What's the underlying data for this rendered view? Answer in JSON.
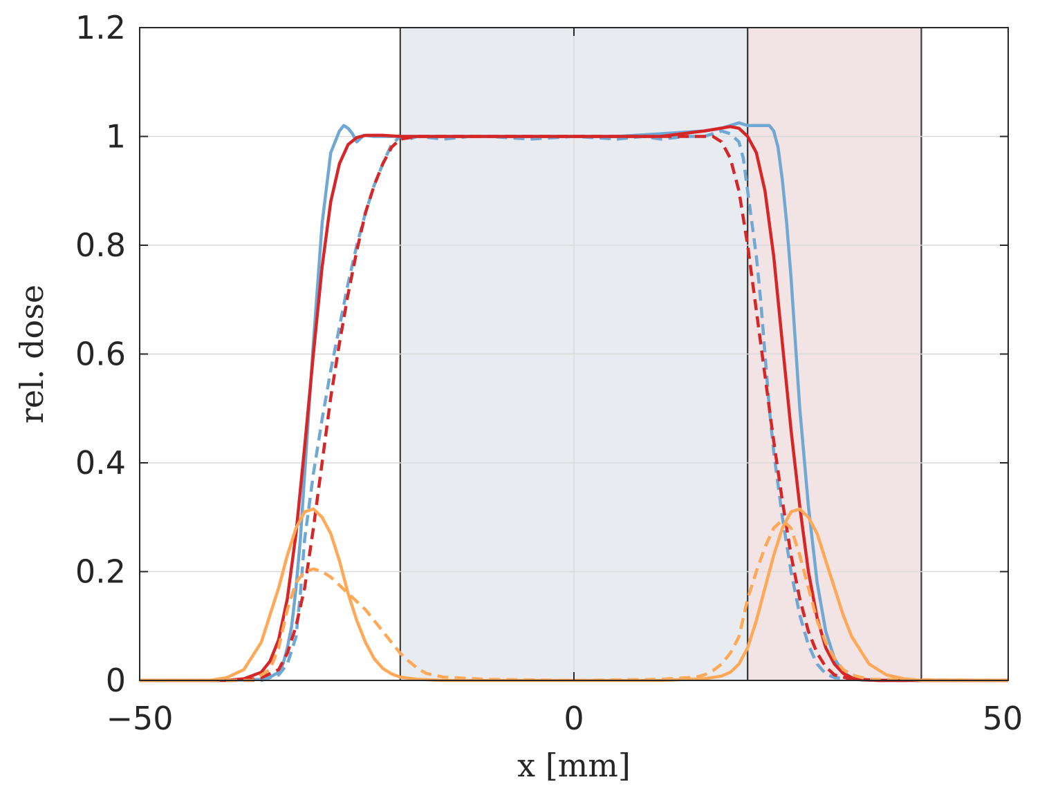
{
  "chart_data": {
    "type": "line",
    "xlabel": "x [mm]",
    "ylabel": "rel. dose",
    "xlim": [
      -50,
      50
    ],
    "ylim": [
      0,
      1.2
    ],
    "xticks": [
      -50,
      0,
      50
    ],
    "xtick_labels": [
      "−50",
      "0",
      "50"
    ],
    "yticks": [
      0,
      0.2,
      0.4,
      0.6,
      0.8,
      1,
      1.2
    ],
    "ytick_labels": [
      "0",
      "0.2",
      "0.4",
      "0.6",
      "0.8",
      "1",
      "1.2"
    ],
    "grid": true,
    "shaded_regions": [
      {
        "x": [
          -20,
          20
        ],
        "color": "#e8ecf0"
      },
      {
        "x": [
          20,
          40
        ],
        "color": "#f2e4e4"
      }
    ],
    "series": [
      {
        "color": "#6fa8d3",
        "style": "solid",
        "x": [
          -50,
          -40,
          -36,
          -35,
          -34,
          -33.5,
          -33,
          -32.5,
          -32,
          -31.5,
          -31,
          -30,
          -29,
          -28,
          -27,
          -26.5,
          -26,
          -25.5,
          -25,
          -24.2,
          -23,
          -20,
          -15,
          -10,
          -5,
          0,
          5,
          10,
          15,
          17,
          18,
          19,
          20,
          21.5,
          22.5,
          23,
          23.5,
          24,
          24.5,
          25,
          25.5,
          26,
          27,
          28,
          29,
          30,
          31,
          32,
          33,
          35,
          40,
          50
        ],
        "y": [
          0,
          0,
          0.002,
          0.006,
          0.015,
          0.03,
          0.06,
          0.1,
          0.17,
          0.26,
          0.38,
          0.62,
          0.84,
          0.97,
          1.01,
          1.02,
          1.015,
          1.005,
          0.99,
          1.002,
          1.0,
          1.0,
          1.0,
          1.0,
          1.0,
          1.0,
          1.0,
          1.005,
          1.01,
          1.015,
          1.02,
          1.025,
          1.02,
          1.02,
          1.02,
          1.01,
          0.98,
          0.92,
          0.84,
          0.74,
          0.62,
          0.5,
          0.32,
          0.18,
          0.09,
          0.04,
          0.015,
          0.005,
          0.001,
          0,
          0,
          0
        ]
      },
      {
        "color": "#6fa8d3",
        "style": "dashed",
        "x": [
          -50,
          -36,
          -34,
          -33,
          -32,
          -31.5,
          -31,
          -30,
          -29,
          -28,
          -27,
          -26,
          -25,
          -24,
          -23,
          -22,
          -21,
          -20,
          -19,
          -18,
          -15,
          -12,
          -10,
          -5,
          0,
          5,
          8,
          10,
          13,
          15,
          17,
          18,
          19,
          19.5,
          20,
          20.5,
          21,
          21.5,
          22,
          22.5,
          23,
          24,
          25,
          26,
          27,
          28,
          29,
          30,
          35,
          50
        ],
        "y": [
          0,
          0,
          0.01,
          0.03,
          0.08,
          0.16,
          0.26,
          0.38,
          0.48,
          0.57,
          0.65,
          0.73,
          0.8,
          0.86,
          0.91,
          0.95,
          0.985,
          1.0,
          0.995,
          1.0,
          0.995,
          1.0,
          1.0,
          0.995,
          1.0,
          0.995,
          1.0,
          0.995,
          1.0,
          1.0,
          1.01,
          1.005,
          0.99,
          0.96,
          0.9,
          0.84,
          0.78,
          0.7,
          0.6,
          0.5,
          0.42,
          0.3,
          0.2,
          0.12,
          0.065,
          0.03,
          0.012,
          0.005,
          0,
          0
        ]
      },
      {
        "color": "#d62728",
        "style": "solid",
        "x": [
          -50,
          -40,
          -38,
          -36,
          -35,
          -34,
          -33,
          -32,
          -31,
          -30,
          -29,
          -28,
          -27,
          -26,
          -25,
          -24,
          -22,
          -20,
          -15,
          -10,
          -5,
          0,
          5,
          10,
          15,
          18,
          19,
          20,
          21,
          22,
          23,
          24,
          25,
          26,
          27,
          28,
          29,
          30,
          31,
          32,
          33,
          35,
          38,
          50
        ],
        "y": [
          0,
          0,
          0.003,
          0.015,
          0.035,
          0.075,
          0.15,
          0.27,
          0.43,
          0.6,
          0.76,
          0.88,
          0.95,
          0.985,
          0.998,
          1.002,
          1.002,
          1.0,
          1.0,
          1.0,
          1.0,
          1.0,
          1.0,
          1.0,
          1.01,
          1.018,
          1.015,
          1.0,
          0.97,
          0.9,
          0.78,
          0.62,
          0.46,
          0.32,
          0.2,
          0.115,
          0.06,
          0.03,
          0.013,
          0.005,
          0.002,
          0,
          0,
          0
        ]
      },
      {
        "color": "#d62728",
        "style": "dashed",
        "x": [
          -50,
          -38,
          -36,
          -34,
          -33,
          -32,
          -31,
          -30,
          -29,
          -28,
          -27,
          -26,
          -25,
          -24,
          -23,
          -22,
          -21,
          -20,
          -18,
          -15,
          -10,
          0,
          10,
          15,
          16,
          17,
          18,
          19,
          20,
          21,
          22,
          23,
          24,
          25,
          26,
          27,
          28,
          29,
          30,
          32,
          35,
          50
        ],
        "y": [
          0,
          0,
          0.005,
          0.02,
          0.05,
          0.1,
          0.17,
          0.28,
          0.4,
          0.52,
          0.62,
          0.71,
          0.79,
          0.86,
          0.91,
          0.95,
          0.98,
          0.995,
          1.0,
          1.0,
          1.0,
          1.0,
          1.0,
          1.0,
          1.0,
          0.99,
          0.96,
          0.9,
          0.8,
          0.68,
          0.56,
          0.44,
          0.33,
          0.23,
          0.15,
          0.09,
          0.05,
          0.025,
          0.01,
          0.002,
          0,
          0
        ]
      },
      {
        "color": "#ffa857",
        "style": "solid",
        "x": [
          -50,
          -42,
          -40,
          -38,
          -36,
          -34,
          -33,
          -32,
          -31,
          -30,
          -29,
          -28,
          -27,
          -26,
          -25,
          -24,
          -23,
          -22,
          -21,
          -20,
          -18,
          -15,
          -10,
          0,
          10,
          15,
          17,
          18,
          19,
          20,
          21,
          22,
          23,
          24,
          25,
          26,
          27,
          28,
          29,
          30,
          31,
          32,
          34,
          36,
          38,
          40,
          42,
          50
        ],
        "y": [
          0,
          0,
          0.005,
          0.02,
          0.07,
          0.17,
          0.23,
          0.28,
          0.31,
          0.315,
          0.3,
          0.27,
          0.22,
          0.16,
          0.11,
          0.07,
          0.04,
          0.022,
          0.012,
          0.006,
          0.002,
          0,
          0,
          0,
          0,
          0.003,
          0.008,
          0.015,
          0.03,
          0.06,
          0.11,
          0.17,
          0.23,
          0.28,
          0.31,
          0.315,
          0.3,
          0.27,
          0.22,
          0.17,
          0.12,
          0.08,
          0.03,
          0.01,
          0.003,
          0,
          0,
          0
        ]
      },
      {
        "color": "#ffa857",
        "style": "dashed",
        "x": [
          -50,
          -37,
          -35,
          -34,
          -33,
          -32,
          -31,
          -30,
          -29,
          -28,
          -27,
          -26,
          -25,
          -24,
          -23,
          -22,
          -21,
          -20,
          -19,
          -18,
          -17,
          -15,
          -10,
          0,
          10,
          14,
          15,
          16,
          17,
          18,
          19,
          20,
          21,
          22,
          23,
          24,
          25,
          26,
          27,
          28,
          29,
          30,
          31,
          32,
          34,
          50
        ],
        "y": [
          0,
          0,
          0.02,
          0.06,
          0.13,
          0.18,
          0.2,
          0.205,
          0.2,
          0.19,
          0.175,
          0.16,
          0.145,
          0.13,
          0.11,
          0.09,
          0.07,
          0.05,
          0.035,
          0.022,
          0.013,
          0.006,
          0.002,
          0,
          0.002,
          0.006,
          0.01,
          0.018,
          0.03,
          0.05,
          0.08,
          0.15,
          0.2,
          0.245,
          0.28,
          0.295,
          0.28,
          0.23,
          0.17,
          0.11,
          0.07,
          0.04,
          0.02,
          0.01,
          0.002,
          0
        ]
      }
    ]
  }
}
